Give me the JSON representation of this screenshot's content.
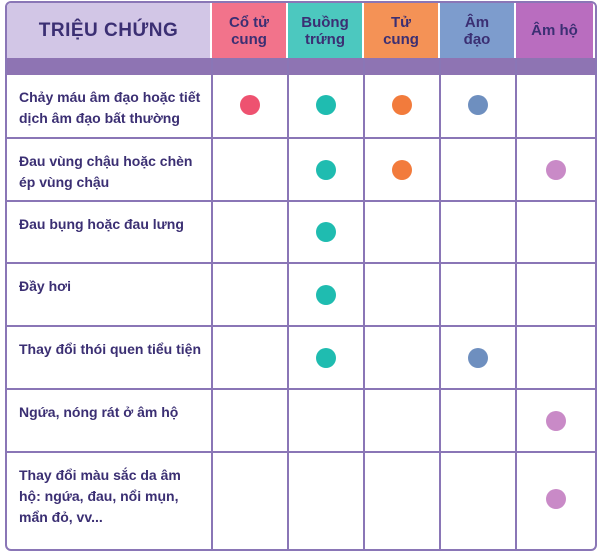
{
  "colors": {
    "border": "#8a76b6",
    "band": "#8e74b3",
    "text": "#3b2f73",
    "header_title_bg": "#d2c6e6",
    "header_cervix_bg": "#f2738b",
    "header_ovary_bg": "#4cc8bf",
    "header_uterus_bg": "#f49256",
    "header_vagina_bg": "#7d9ccd",
    "header_vulva_bg": "#b96dbf",
    "dot_cervix": "#ee5270",
    "dot_ovary": "#1fbcb0",
    "dot_uterus": "#f27b3c",
    "dot_vagina": "#6e8fbf",
    "dot_vulva": "#c98ac7"
  },
  "header": {
    "title": "TRIỆU CHỨNG",
    "columns": [
      {
        "label": "Cổ tử\ncung",
        "color": "#f2738b",
        "text_color": "#3b2f73"
      },
      {
        "label": "Buồng\ntrứng",
        "color": "#4cc8bf",
        "text_color": "#3b2f73"
      },
      {
        "label": "Tử\ncung",
        "color": "#f49256",
        "text_color": "#3b2f73"
      },
      {
        "label": "Âm\nđạo",
        "color": "#7d9ccd",
        "text_color": "#3b2f73"
      },
      {
        "label": "Âm hộ",
        "color": "#b96dbf",
        "text_color": "#3b2f73"
      }
    ]
  },
  "rows": [
    {
      "symptom": "Chảy máu âm đạo hoặc tiết dịch âm đạo bất thường",
      "marks": [
        true,
        true,
        true,
        true,
        false
      ]
    },
    {
      "symptom": "Đau vùng chậu hoặc chèn ép vùng chậu",
      "marks": [
        false,
        true,
        true,
        false,
        true
      ]
    },
    {
      "symptom": "Đau bụng hoặc đau lưng",
      "marks": [
        false,
        true,
        false,
        false,
        false
      ]
    },
    {
      "symptom": "Đầy hơi",
      "marks": [
        false,
        true,
        false,
        false,
        false
      ]
    },
    {
      "symptom": "Thay đổi thói quen tiểu tiện",
      "marks": [
        false,
        true,
        false,
        true,
        false
      ]
    },
    {
      "symptom": "Ngứa, nóng rát ở âm hộ",
      "marks": [
        false,
        false,
        false,
        false,
        true
      ]
    },
    {
      "symptom": "Thay đổi màu sắc da âm hộ: ngứa, đau, nổi mụn, mẩn đỏ, vv...",
      "marks": [
        false,
        false,
        false,
        false,
        true
      ]
    }
  ]
}
